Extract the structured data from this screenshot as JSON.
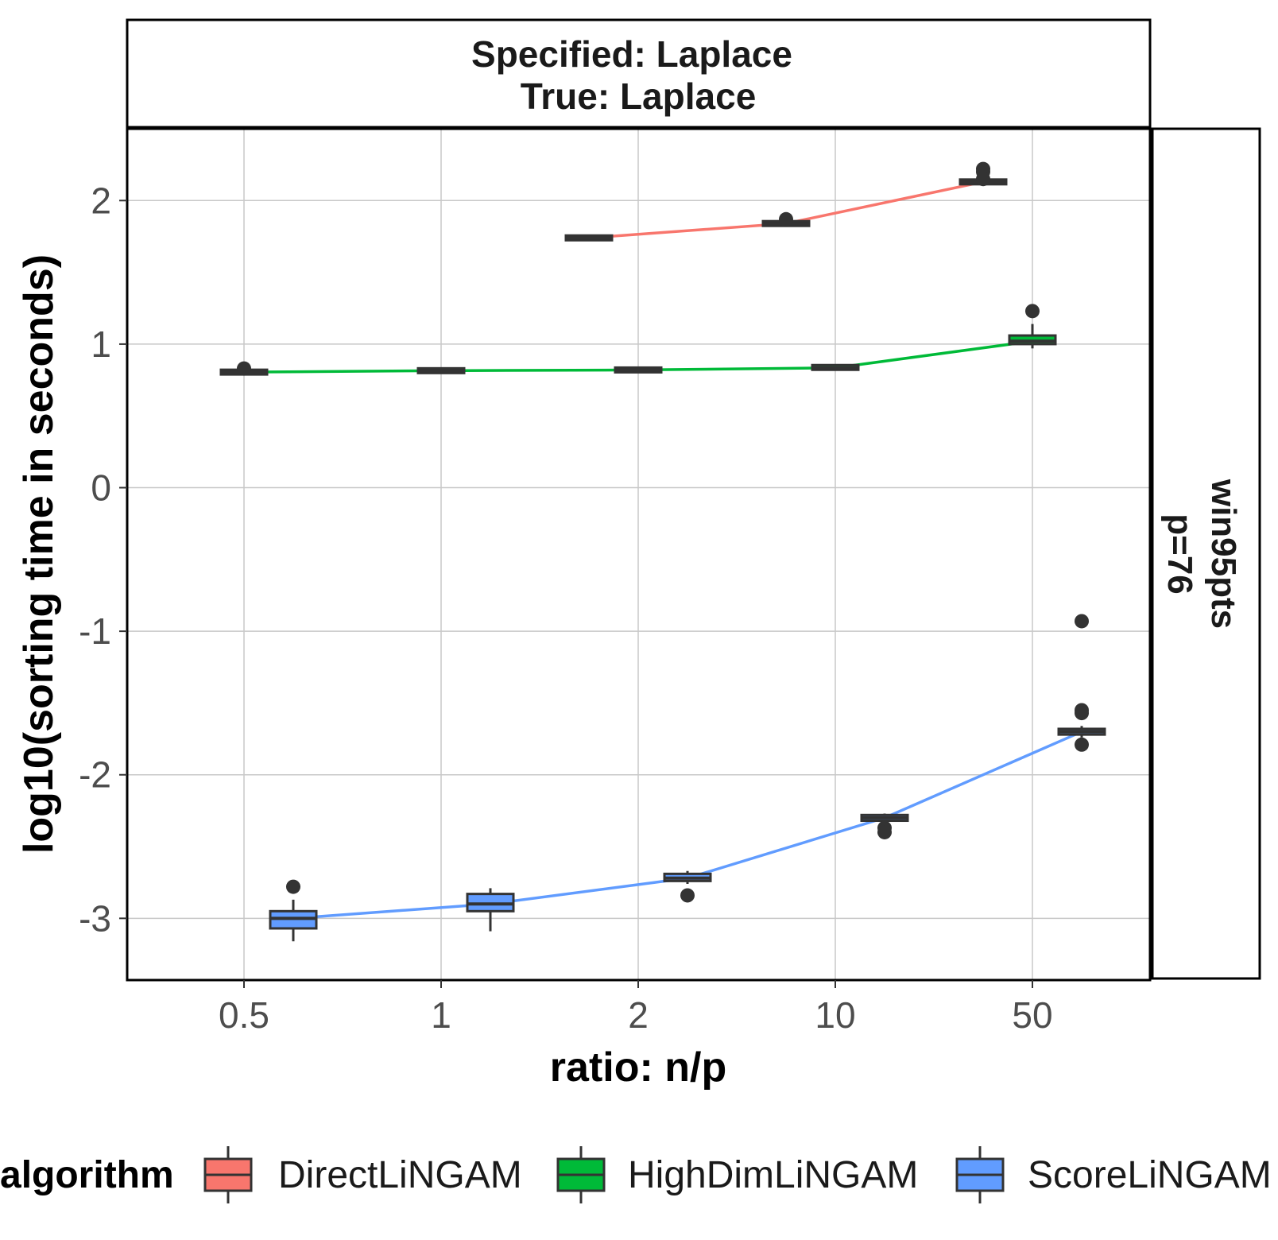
{
  "chart_data": {
    "type": "box",
    "strip_title": {
      "line1": "Specified:  Laplace",
      "line2": "True: Laplace"
    },
    "facet_right": {
      "line1": "win95pts",
      "line2": "p=76"
    },
    "xlabel": "ratio: n/p",
    "ylabel": "log10(sorting time in seconds)",
    "categories": [
      "0.5",
      "1",
      "2",
      "10",
      "50"
    ],
    "y_ticks": [
      "2",
      "1",
      "0",
      "-1",
      "-2",
      "-3"
    ],
    "y_tick_values": [
      2,
      1,
      0,
      -1,
      -2,
      -3
    ],
    "ylim": [
      -3.43,
      2.5
    ],
    "grid": true,
    "legend": {
      "title": "algorithm",
      "position": "bottom",
      "entries": [
        "DirectLiNGAM",
        "HighDimLiNGAM",
        "ScoreLiNGAM"
      ]
    },
    "series": [
      {
        "name": "DirectLiNGAM",
        "color": "#F8766D",
        "boxes": [
          {
            "category": "2",
            "q1": 1.73,
            "median": 1.74,
            "q3": 1.75,
            "min": 1.73,
            "max": 1.75,
            "outliers": []
          },
          {
            "category": "10",
            "q1": 1.83,
            "median": 1.84,
            "q3": 1.85,
            "min": 1.82,
            "max": 1.86,
            "outliers": [
              1.87
            ]
          },
          {
            "category": "50",
            "q1": 2.12,
            "median": 2.13,
            "q3": 2.14,
            "min": 2.11,
            "max": 2.15,
            "outliers": [
              2.22,
              2.2,
              2.15
            ]
          }
        ]
      },
      {
        "name": "HighDimLiNGAM",
        "color": "#00BA38",
        "boxes": [
          {
            "category": "0.5",
            "q1": 0.8,
            "median": 0.805,
            "q3": 0.81,
            "min": 0.8,
            "max": 0.81,
            "outliers": [
              0.83
            ]
          },
          {
            "category": "1",
            "q1": 0.81,
            "median": 0.815,
            "q3": 0.82,
            "min": 0.81,
            "max": 0.82,
            "outliers": []
          },
          {
            "category": "2",
            "q1": 0.815,
            "median": 0.82,
            "q3": 0.825,
            "min": 0.815,
            "max": 0.825,
            "outliers": []
          },
          {
            "category": "10",
            "q1": 0.83,
            "median": 0.835,
            "q3": 0.845,
            "min": 0.83,
            "max": 0.845,
            "outliers": []
          },
          {
            "category": "50",
            "q1": 1.0,
            "median": 1.02,
            "q3": 1.06,
            "min": 0.97,
            "max": 1.14,
            "outliers": [
              1.23
            ]
          }
        ]
      },
      {
        "name": "ScoreLiNGAM",
        "color": "#619CFF",
        "boxes": [
          {
            "category": "0.5",
            "q1": -3.07,
            "median": -3.0,
            "q3": -2.95,
            "min": -3.16,
            "max": -2.87,
            "outliers": [
              -2.78
            ]
          },
          {
            "category": "1",
            "q1": -2.95,
            "median": -2.9,
            "q3": -2.83,
            "min": -3.09,
            "max": -2.79,
            "outliers": []
          },
          {
            "category": "2",
            "q1": -2.74,
            "median": -2.72,
            "q3": -2.69,
            "min": -2.76,
            "max": -2.67,
            "outliers": [
              -2.84
            ]
          },
          {
            "category": "10",
            "q1": -2.32,
            "median": -2.3,
            "q3": -2.28,
            "min": -2.33,
            "max": -2.27,
            "outliers": [
              -2.37,
              -2.4
            ]
          },
          {
            "category": "50",
            "q1": -1.72,
            "median": -1.7,
            "q3": -1.68,
            "min": -1.74,
            "max": -1.66,
            "outliers": [
              -0.93,
              -1.55,
              -1.57,
              -1.79
            ]
          }
        ]
      }
    ],
    "trend_lines": [
      {
        "name": "DirectLiNGAM",
        "color": "#F8766D",
        "category_indices": [
          2,
          3,
          4
        ],
        "values": [
          1.74,
          1.84,
          2.13
        ]
      },
      {
        "name": "HighDimLiNGAM",
        "color": "#00BA38",
        "category_indices": [
          0,
          1,
          2,
          3,
          4
        ],
        "values": [
          0.805,
          0.815,
          0.82,
          0.835,
          1.02
        ]
      },
      {
        "name": "ScoreLiNGAM",
        "color": "#619CFF",
        "category_indices": [
          0,
          1,
          2,
          3,
          4
        ],
        "values": [
          -3.0,
          -2.9,
          -2.72,
          -2.3,
          -1.7
        ]
      }
    ]
  }
}
